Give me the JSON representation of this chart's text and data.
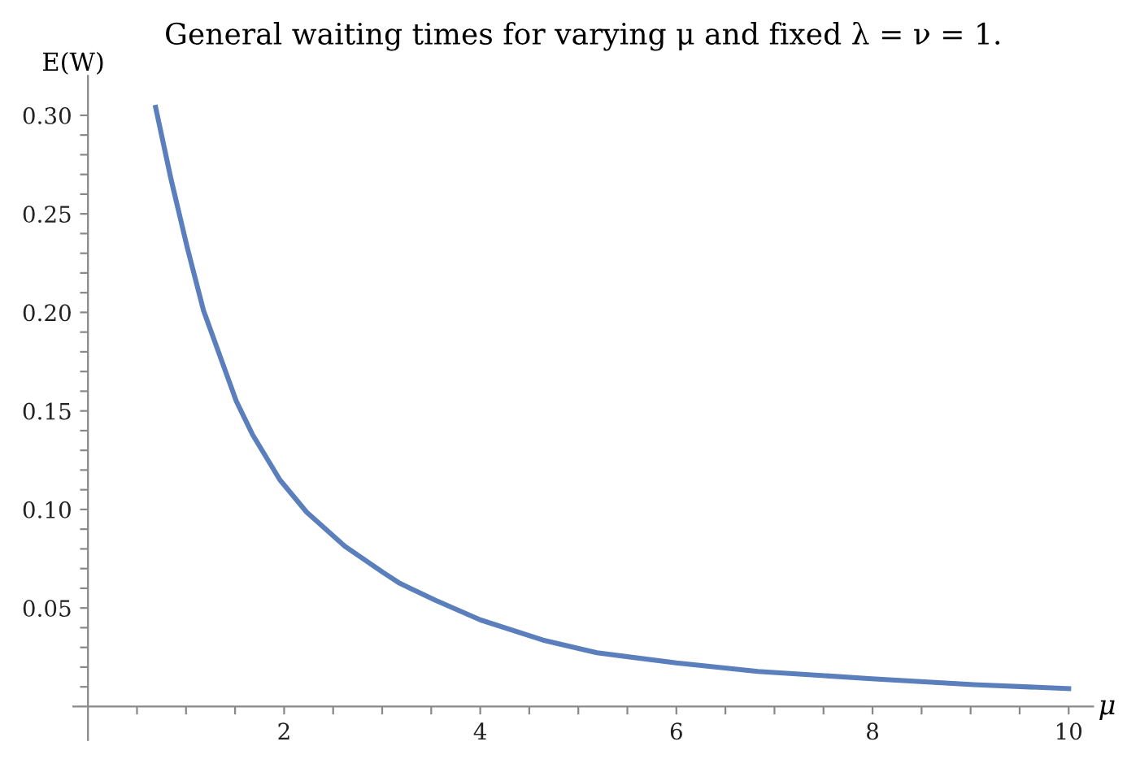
{
  "chart_data": {
    "type": "line",
    "title": "General waiting times for varying μ and fixed λ = ν = 1.",
    "xlabel": "μ",
    "ylabel": "E(W)",
    "x": [
      0.69,
      0.845,
      1.012,
      1.178,
      1.345,
      1.512,
      1.678,
      1.957,
      2.23,
      2.62,
      3.01,
      3.18,
      3.54,
      4.0,
      4.64,
      5.19,
      6.0,
      6.83,
      7.99,
      9.03,
      10.0
    ],
    "series": [
      {
        "color": "#5a7fbc",
        "values": [
          0.304,
          0.268,
          0.233,
          0.201,
          0.178,
          0.155,
          0.138,
          0.115,
          0.0986,
          0.0813,
          0.068,
          0.0625,
          0.054,
          0.044,
          0.0337,
          0.0273,
          0.0221,
          0.0178,
          0.0141,
          0.0111,
          0.0091
        ]
      }
    ],
    "xlim": [
      -0.15,
      10.25
    ],
    "ylim": [
      -0.017,
      0.32
    ],
    "xticks": [
      {
        "value": 0.5,
        "label": null
      },
      {
        "value": 1,
        "label": null
      },
      {
        "value": 1.5,
        "label": null
      },
      2,
      {
        "value": 2.5,
        "label": null
      },
      {
        "value": 3,
        "label": null
      },
      {
        "value": 3.5,
        "label": null
      },
      4,
      {
        "value": 4.5,
        "label": null
      },
      {
        "value": 5,
        "label": null
      },
      {
        "value": 5.5,
        "label": null
      },
      6,
      {
        "value": 6.5,
        "label": null
      },
      {
        "value": 7,
        "label": null
      },
      {
        "value": 7.5,
        "label": null
      },
      8,
      {
        "value": 8.5,
        "label": null
      },
      {
        "value": 9,
        "label": null
      },
      {
        "value": 9.5,
        "label": null
      },
      10
    ],
    "yticks": [
      {
        "value": 0.01,
        "label": null
      },
      {
        "value": 0.02,
        "label": null
      },
      {
        "value": 0.03,
        "label": null
      },
      {
        "value": 0.04,
        "label": null
      },
      {
        "value": 0.05,
        "label": "0.05"
      },
      {
        "value": 0.06,
        "label": null
      },
      {
        "value": 0.07,
        "label": null
      },
      {
        "value": 0.08,
        "label": null
      },
      {
        "value": 0.09,
        "label": null
      },
      {
        "value": 0.1,
        "label": "0.10"
      },
      {
        "value": 0.11,
        "label": null
      },
      {
        "value": 0.12,
        "label": null
      },
      {
        "value": 0.13,
        "label": null
      },
      {
        "value": 0.14,
        "label": null
      },
      {
        "value": 0.15,
        "label": "0.15"
      },
      {
        "value": 0.16,
        "label": null
      },
      {
        "value": 0.17,
        "label": null
      },
      {
        "value": 0.18,
        "label": null
      },
      {
        "value": 0.19,
        "label": null
      },
      {
        "value": 0.2,
        "label": "0.20"
      },
      {
        "value": 0.21,
        "label": null
      },
      {
        "value": 0.22,
        "label": null
      },
      {
        "value": 0.23,
        "label": null
      },
      {
        "value": 0.24,
        "label": null
      },
      {
        "value": 0.25,
        "label": "0.25"
      },
      {
        "value": 0.26,
        "label": null
      },
      {
        "value": 0.27,
        "label": null
      },
      {
        "value": 0.28,
        "label": null
      },
      {
        "value": 0.29,
        "label": null
      },
      {
        "value": 0.3,
        "label": "0.30"
      }
    ],
    "grid": false,
    "marker": "none",
    "line_style": "solid"
  }
}
